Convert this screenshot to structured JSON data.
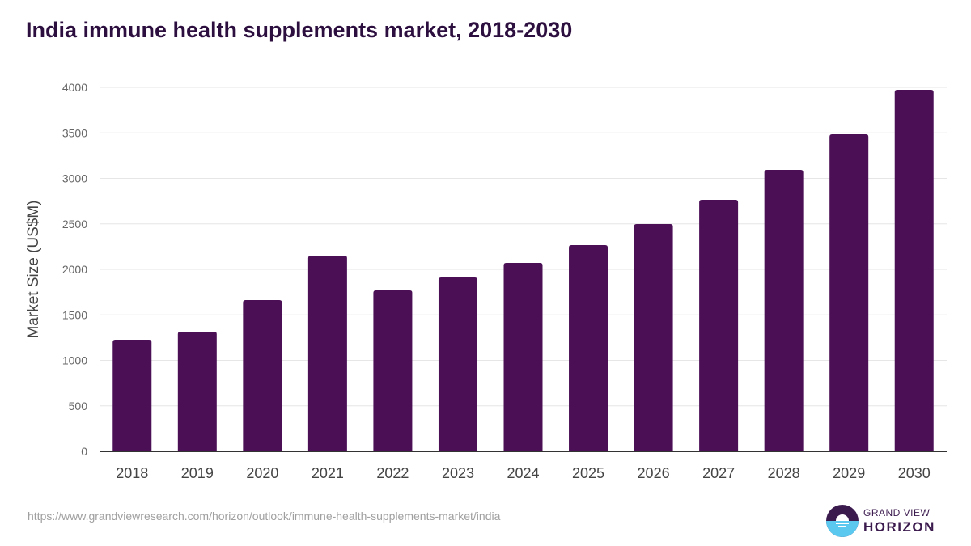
{
  "chart_data": {
    "type": "bar",
    "title": "India immune health supplements market, 2018-2030",
    "xlabel": "",
    "ylabel": "Market Size (US$M)",
    "ylim": [
      0,
      4000
    ],
    "yticks": [
      0,
      500,
      1000,
      1500,
      2000,
      2500,
      3000,
      3500,
      4000
    ],
    "grid": true,
    "categories": [
      "2018",
      "2019",
      "2020",
      "2021",
      "2022",
      "2023",
      "2024",
      "2025",
      "2026",
      "2027",
      "2028",
      "2029",
      "2030"
    ],
    "values": [
      1227,
      1316,
      1662,
      2151,
      1769,
      1911,
      2071,
      2267,
      2498,
      2764,
      3093,
      3484,
      3973
    ],
    "bar_color": "#4b0f56"
  },
  "source": "https://www.grandviewresearch.com/horizon/outlook/immune-health-supplements-market/india",
  "logo": {
    "line1": "GRAND VIEW",
    "line2": "HORIZON"
  }
}
